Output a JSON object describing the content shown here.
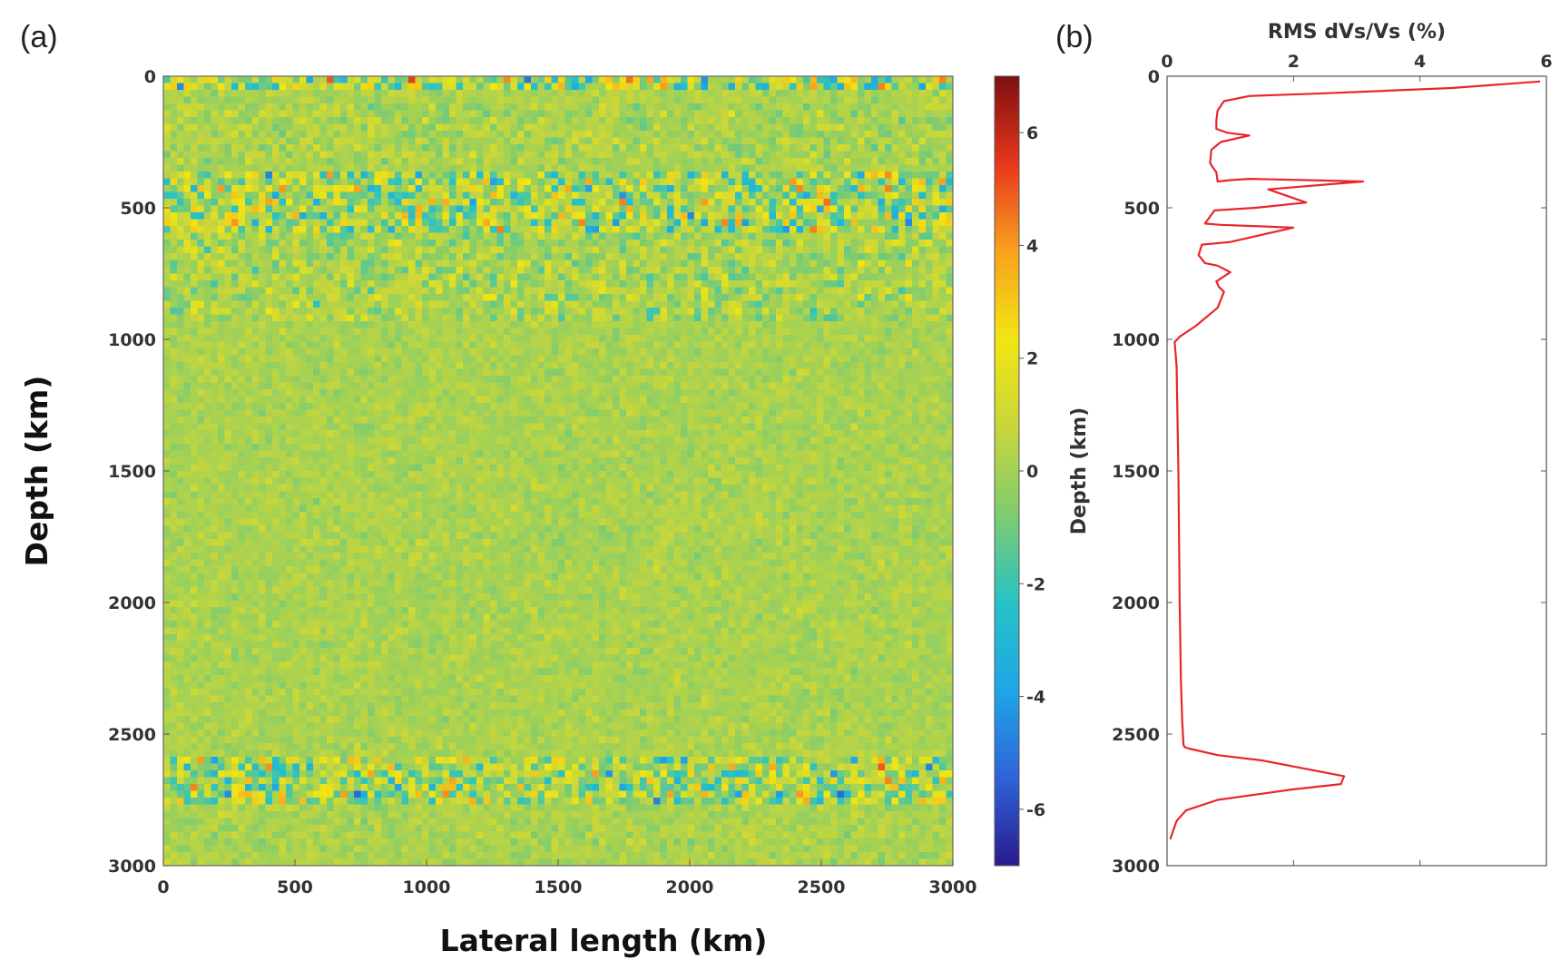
{
  "panels": {
    "a_label": "(a)",
    "b_label": "(b)"
  },
  "colors": {
    "profile_line": "#e8262a",
    "axis": "#444444",
    "colormap": [
      "#2a1a8c",
      "#2f63d9",
      "#1fa6e6",
      "#27c2c6",
      "#7fcc6f",
      "#c8d63b",
      "#f2e512",
      "#f8a21f",
      "#e8361c",
      "#7d0f0f"
    ]
  },
  "chart_data": [
    {
      "type": "heatmap",
      "title": "",
      "xlabel": "Lateral length (km)",
      "ylabel": "Depth (km)",
      "xlim": [
        0,
        3000
      ],
      "ylim": [
        0,
        3000
      ],
      "y_inverted": true,
      "x_ticks": [
        0,
        500,
        1000,
        1500,
        2000,
        2500,
        3000
      ],
      "y_ticks": [
        0,
        500,
        1000,
        1500,
        2000,
        2500,
        3000
      ],
      "colorbar": {
        "range": [
          -7,
          7
        ],
        "ticks": [
          6,
          4,
          2,
          0,
          -2,
          -4,
          -6
        ]
      },
      "anomaly_bands_depth_km": [
        {
          "depth_range": [
            0,
            60
          ],
          "amplitude": "strong"
        },
        {
          "depth_range": [
            100,
            330
          ],
          "amplitude": "weak"
        },
        {
          "depth_range": [
            370,
            600
          ],
          "amplitude": "strong"
        },
        {
          "depth_range": [
            600,
            930
          ],
          "amplitude": "moderate"
        },
        {
          "depth_range": [
            930,
            2580
          ],
          "amplitude": "very weak"
        },
        {
          "depth_range": [
            2590,
            2780
          ],
          "amplitude": "strong"
        }
      ]
    },
    {
      "type": "line",
      "title": "RMS dVs/Vs (%)",
      "xlabel": "RMS dVs/Vs (%)",
      "ylabel": "Depth (km)",
      "xlim": [
        0,
        6
      ],
      "ylim": [
        0,
        3000
      ],
      "y_inverted": true,
      "x_ticks": [
        0,
        2,
        4,
        6
      ],
      "y_ticks": [
        0,
        500,
        1000,
        1500,
        2000,
        2500,
        3000
      ],
      "series": [
        {
          "x": [
            5.9,
            4.5,
            2.5,
            1.3,
            0.9,
            0.8,
            0.78,
            0.78,
            0.95,
            1.3,
            0.85,
            0.7,
            0.68,
            0.72,
            0.78,
            0.8,
            1.0,
            1.3,
            2.2,
            3.1,
            1.6,
            2.2,
            1.4,
            0.75,
            0.6,
            0.85,
            2.0,
            1.0,
            0.55,
            0.5,
            0.6,
            0.8,
            1.0,
            0.78,
            0.82,
            0.9,
            0.8,
            0.45,
            0.2,
            0.12,
            0.15,
            0.18,
            0.2,
            0.22,
            0.24,
            0.26,
            0.28,
            0.35,
            0.8,
            1.5,
            2.8,
            2.75,
            2.0,
            0.8,
            0.3,
            0.15,
            0.05
          ],
          "y": [
            20,
            45,
            65,
            75,
            95,
            130,
            170,
            200,
            215,
            225,
            250,
            280,
            330,
            345,
            365,
            400,
            395,
            390,
            395,
            400,
            430,
            480,
            500,
            510,
            560,
            565,
            575,
            630,
            640,
            680,
            710,
            720,
            745,
            780,
            800,
            820,
            880,
            950,
            990,
            1010,
            1100,
            1500,
            2000,
            2300,
            2450,
            2540,
            2550,
            2555,
            2580,
            2600,
            2660,
            2690,
            2710,
            2750,
            2790,
            2830,
            2900
          ]
        }
      ]
    }
  ]
}
